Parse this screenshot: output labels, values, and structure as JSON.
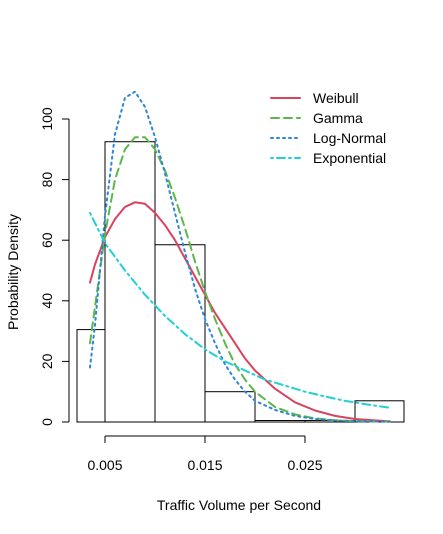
{
  "chart_data": {
    "type": "histogram",
    "xlabel": "Traffic Volume per Second",
    "ylabel": "Probability Density",
    "xlim": [
      0.0,
      0.0327
    ],
    "ylim": [
      0,
      110
    ],
    "xticks": [
      {
        "value": 0.005,
        "label": "0.005"
      },
      {
        "value": 0.015,
        "label": "0.015"
      },
      {
        "value": 0.025,
        "label": "0.025"
      }
    ],
    "yticks": [
      {
        "value": 0,
        "label": "0"
      },
      {
        "value": 20,
        "label": "20"
      },
      {
        "value": 40,
        "label": "40"
      },
      {
        "value": 60,
        "label": "60"
      },
      {
        "value": 80,
        "label": "80"
      },
      {
        "value": 100,
        "label": "100"
      }
    ],
    "bins": [
      {
        "start": 0.0,
        "end": 0.005,
        "density": 30.5
      },
      {
        "start": 0.005,
        "end": 0.01,
        "density": 92.5
      },
      {
        "start": 0.01,
        "end": 0.015,
        "density": 58.5
      },
      {
        "start": 0.015,
        "end": 0.02,
        "density": 10.0
      },
      {
        "start": 0.02,
        "end": 0.025,
        "density": 0.5
      },
      {
        "start": 0.025,
        "end": 0.03,
        "density": 0.5
      },
      {
        "start": 0.03,
        "end": 0.035,
        "density": 7.0
      }
    ],
    "series": [
      {
        "name": "Weibull",
        "color": "#d9435e",
        "dash": "solid",
        "x": [
          0.0035,
          0.004,
          0.005,
          0.006,
          0.007,
          0.008,
          0.009,
          0.01,
          0.011,
          0.012,
          0.013,
          0.014,
          0.015,
          0.016,
          0.017,
          0.018,
          0.019,
          0.02,
          0.022,
          0.024,
          0.026,
          0.028,
          0.03,
          0.0335
        ],
        "y": [
          46,
          52,
          61,
          67,
          71,
          72.5,
          72,
          69,
          65,
          60,
          54,
          48,
          42,
          36,
          31,
          26,
          21,
          17,
          11,
          6.5,
          3.8,
          2.0,
          1.0,
          0.2
        ]
      },
      {
        "name": "Gamma",
        "color": "#5ab849",
        "dash": "dashed",
        "x": [
          0.0035,
          0.004,
          0.005,
          0.006,
          0.007,
          0.008,
          0.009,
          0.01,
          0.011,
          0.012,
          0.013,
          0.014,
          0.015,
          0.016,
          0.017,
          0.018,
          0.019,
          0.02,
          0.022,
          0.024,
          0.026,
          0.028,
          0.03,
          0.0335
        ],
        "y": [
          26,
          38,
          62,
          80,
          90,
          94,
          94,
          90,
          83,
          74,
          64,
          53,
          43,
          34,
          26,
          19,
          14,
          10,
          5,
          2.5,
          1.2,
          0.6,
          0.3,
          0.1
        ]
      },
      {
        "name": "Log-Normal",
        "color": "#2c86d8",
        "dash": "dotted",
        "x": [
          0.0035,
          0.004,
          0.005,
          0.006,
          0.007,
          0.008,
          0.009,
          0.01,
          0.011,
          0.012,
          0.013,
          0.014,
          0.015,
          0.016,
          0.017,
          0.018,
          0.019,
          0.02,
          0.022,
          0.024,
          0.026,
          0.028,
          0.03,
          0.0335
        ],
        "y": [
          18,
          32,
          68,
          95,
          107,
          109,
          104,
          94,
          82,
          69,
          56,
          44,
          34,
          26,
          19,
          14,
          10,
          7,
          4,
          2,
          1,
          0.5,
          0.3,
          0.1
        ]
      },
      {
        "name": "Exponential",
        "color": "#1fd0d6",
        "dash": "dotdash",
        "x": [
          0.0035,
          0.005,
          0.007,
          0.009,
          0.011,
          0.013,
          0.015,
          0.017,
          0.019,
          0.021,
          0.023,
          0.025,
          0.027,
          0.029,
          0.031,
          0.0335
        ],
        "y": [
          69,
          59,
          50,
          42,
          35,
          29,
          24,
          20,
          17,
          14,
          12,
          10,
          8.4,
          7.0,
          5.9,
          4.7
        ]
      }
    ],
    "legend": {
      "position": "top-right",
      "entries": [
        "Weibull",
        "Gamma",
        "Log-Normal",
        "Exponential"
      ]
    }
  }
}
